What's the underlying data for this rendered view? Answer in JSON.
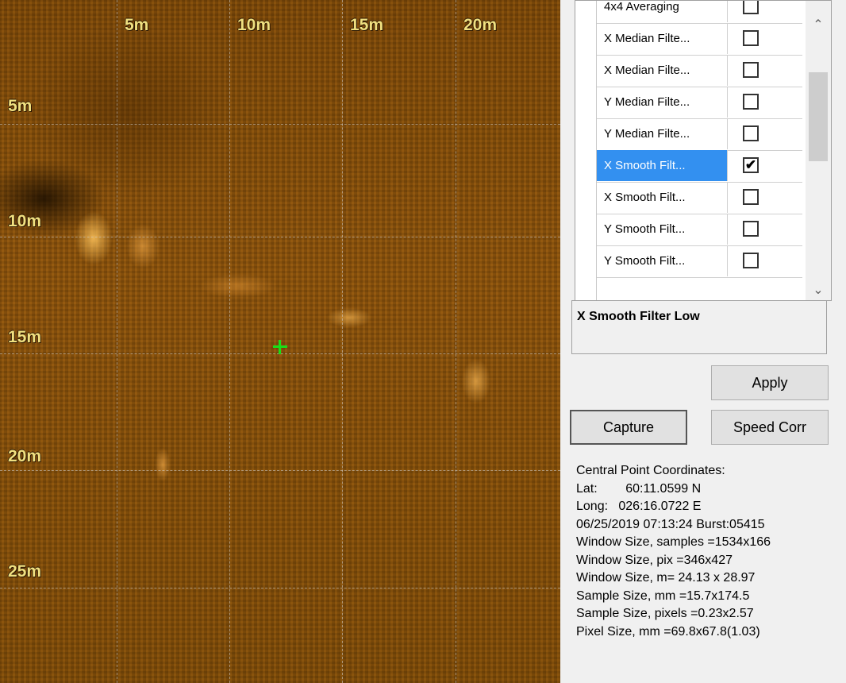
{
  "sonar": {
    "x_labels": [
      "5m",
      "10m",
      "15m",
      "20m"
    ],
    "y_labels": [
      "5m",
      "10m",
      "15m",
      "20m",
      "25m"
    ]
  },
  "filters": {
    "items": [
      {
        "label": "4x4 Averaging",
        "checked": false
      },
      {
        "label": "X Median Filte...",
        "checked": false
      },
      {
        "label": "X Median Filte...",
        "checked": false
      },
      {
        "label": "Y Median Filte...",
        "checked": false
      },
      {
        "label": "Y Median Filte...",
        "checked": false
      },
      {
        "label": "X Smooth Filt...",
        "checked": true,
        "selected": true
      },
      {
        "label": "X Smooth Filt...",
        "checked": false
      },
      {
        "label": "Y Smooth Filt...",
        "checked": false
      },
      {
        "label": "Y Smooth Filt...",
        "checked": false
      }
    ],
    "checkmark": "✔",
    "description": "X Smooth Filter Low"
  },
  "buttons": {
    "apply": "Apply",
    "capture": "Capture",
    "speed_corr": "Speed Corr"
  },
  "info": {
    "title": "Central Point Coordinates:",
    "lat": "Lat:        60:11.0599 N",
    "long": "Long:   026:16.0722 E",
    "datetime": "06/25/2019 07:13:24 Burst:05415",
    "window_samples": "Window Size, samples =1534x166",
    "window_pix": "Window Size, pix =346x427",
    "window_m": "Window Size, m= 24.13 x 28.97",
    "sample_mm": "Sample Size, mm =15.7x174.5",
    "sample_pixels": "Sample Size, pixels =0.23x2.57",
    "pixel_mm": "Pixel Size, mm =69.8x67.8(1.03)"
  }
}
